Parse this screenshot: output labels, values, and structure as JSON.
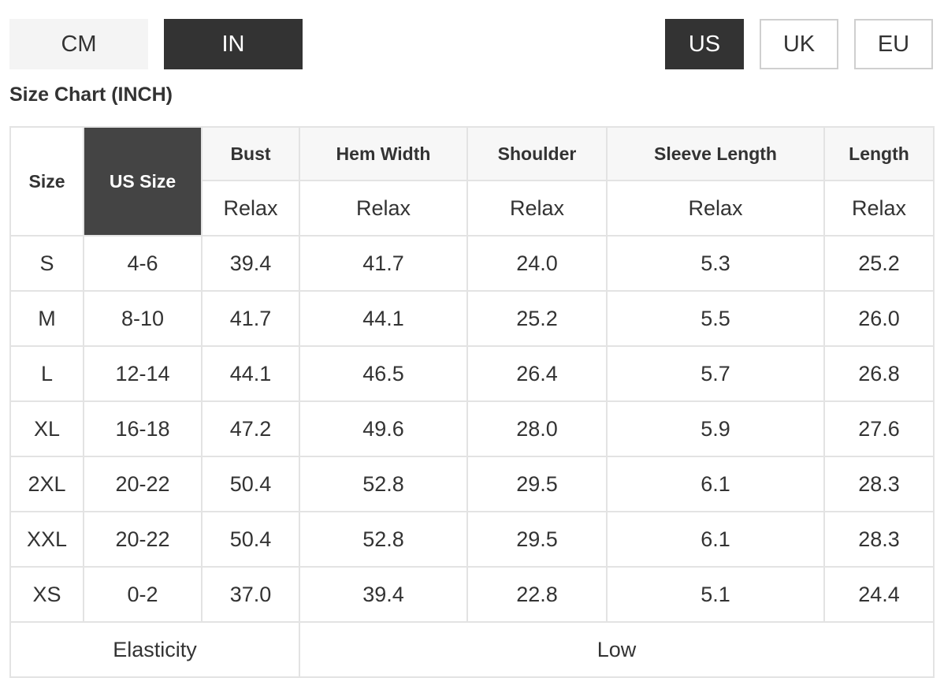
{
  "units": {
    "cm_label": "CM",
    "in_label": "IN",
    "selected": "IN"
  },
  "regions": {
    "us_label": "US",
    "uk_label": "UK",
    "eu_label": "EU",
    "selected": "US"
  },
  "title": "Size Chart (INCH)",
  "table": {
    "headers": {
      "size": "Size",
      "us_size": "US Size",
      "bust": "Bust",
      "hem_width": "Hem Width",
      "shoulder": "Shoulder",
      "sleeve_length": "Sleeve Length",
      "length": "Length"
    },
    "subheaders": [
      "Relax",
      "Relax",
      "Relax",
      "Relax",
      "Relax"
    ],
    "rows": [
      {
        "size": "S",
        "us": "4-6",
        "bust": "39.4",
        "hem": "41.7",
        "shoulder": "24.0",
        "sleeve": "5.3",
        "length": "25.2"
      },
      {
        "size": "M",
        "us": "8-10",
        "bust": "41.7",
        "hem": "44.1",
        "shoulder": "25.2",
        "sleeve": "5.5",
        "length": "26.0"
      },
      {
        "size": "L",
        "us": "12-14",
        "bust": "44.1",
        "hem": "46.5",
        "shoulder": "26.4",
        "sleeve": "5.7",
        "length": "26.8"
      },
      {
        "size": "XL",
        "us": "16-18",
        "bust": "47.2",
        "hem": "49.6",
        "shoulder": "28.0",
        "sleeve": "5.9",
        "length": "27.6"
      },
      {
        "size": "2XL",
        "us": "20-22",
        "bust": "50.4",
        "hem": "52.8",
        "shoulder": "29.5",
        "sleeve": "6.1",
        "length": "28.3"
      },
      {
        "size": "XXL",
        "us": "20-22",
        "bust": "50.4",
        "hem": "52.8",
        "shoulder": "29.5",
        "sleeve": "6.1",
        "length": "28.3"
      },
      {
        "size": "XS",
        "us": "0-2",
        "bust": "37.0",
        "hem": "39.4",
        "shoulder": "22.8",
        "sleeve": "5.1",
        "length": "24.4"
      }
    ],
    "footer": {
      "label": "Elasticity",
      "value": "Low"
    }
  },
  "colors": {
    "active_bg": "#333333",
    "header_dark": "#444444",
    "border": "#e3e3e3"
  }
}
